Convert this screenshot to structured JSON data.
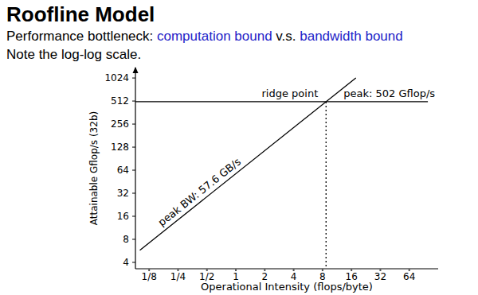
{
  "chart_data": {
    "type": "line",
    "title": "Roofline Model",
    "subtitle": [
      {
        "text": "Performance bottleneck: ",
        "color": "#000000"
      },
      {
        "text": "computation bound",
        "color": "#2323c8"
      },
      {
        "text": " v.s. ",
        "color": "#000000"
      },
      {
        "text": "bandwidth bound",
        "color": "#2323c8"
      }
    ],
    "note": "Note the log-log scale.",
    "xlabel": "Operational Intensity (flops/byte)",
    "ylabel": "Attainable Gflop/s (32b)",
    "log": true,
    "grid": false,
    "xlim": [
      0.09,
      128
    ],
    "ylim": [
      3.3,
      1400
    ],
    "xticks": [
      {
        "value": 0.125,
        "label": "1/8"
      },
      {
        "value": 0.25,
        "label": "1/4"
      },
      {
        "value": 0.5,
        "label": "1/2"
      },
      1,
      2,
      4,
      8,
      16,
      32,
      64
    ],
    "yticks": [
      4,
      8,
      16,
      32,
      64,
      128,
      256,
      512,
      1024
    ],
    "series": [
      {
        "name": "peak BW: 57.6 GB/s",
        "color": "#000000",
        "line_style": "solid",
        "x": [
          0.1,
          17.8
        ],
        "values": [
          5.76,
          1024
        ]
      },
      {
        "name": "peak: 502 Gflop/s",
        "color": "#000000",
        "line_style": "solid",
        "x": [
          0.09,
          100
        ],
        "values": [
          502,
          502
        ]
      },
      {
        "color": "#000000",
        "line_style": "dotted",
        "x": [
          8.7,
          8.7
        ],
        "values": [
          502,
          3.3
        ]
      }
    ],
    "annotations": [
      {
        "text": "ridge point",
        "x": 8.7,
        "y": 502
      }
    ]
  }
}
